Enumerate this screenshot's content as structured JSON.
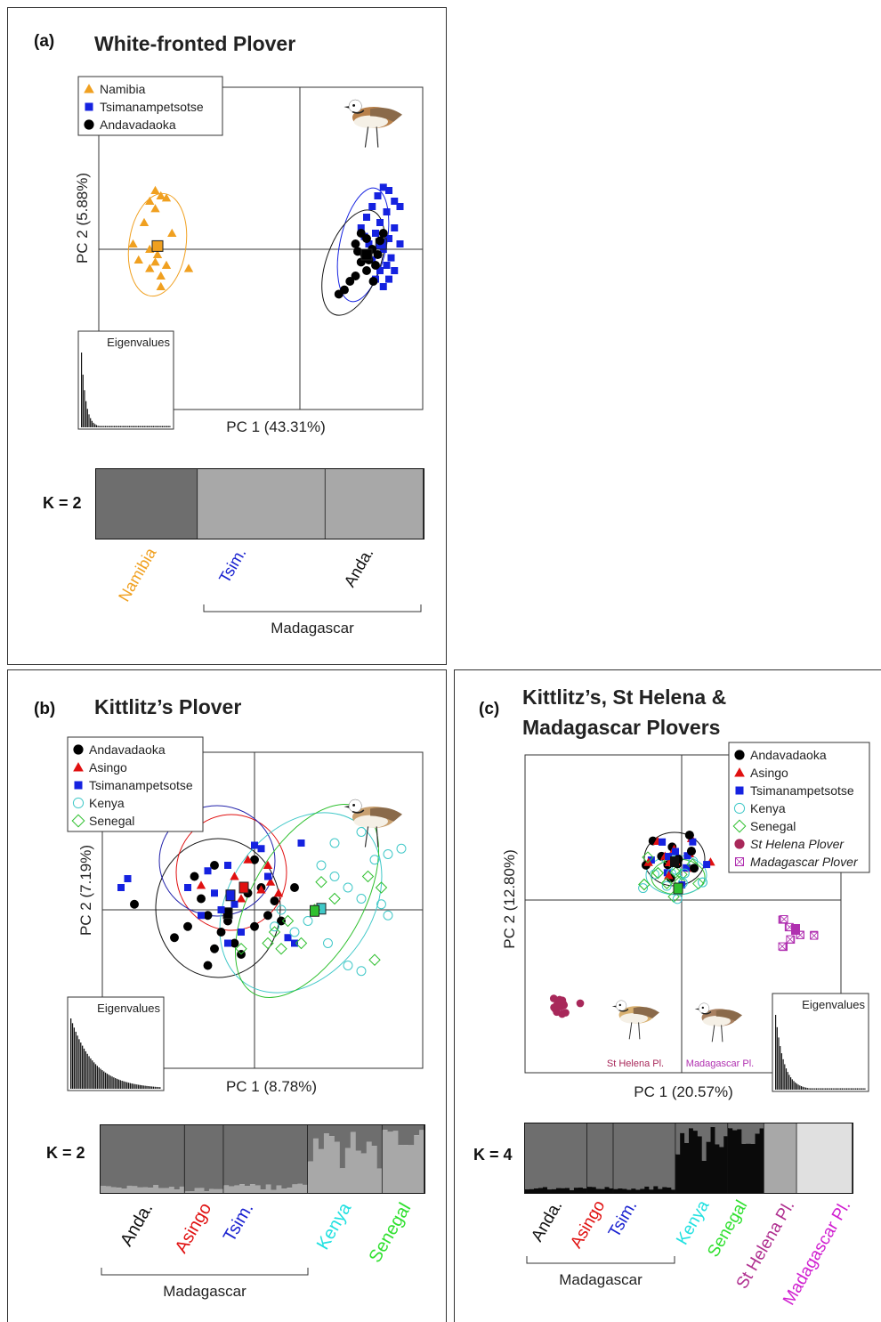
{
  "panels": {
    "a": {
      "label": "(a)",
      "title": "White-fronted Plover",
      "pc1": "PC 1 (43.31%)",
      "pc2": "PC 2 (5.88%)",
      "eigen": "Eigenvalues",
      "k": "K = 2",
      "pops": [
        {
          "name": "Namibia",
          "color": "#f0a020",
          "marker": "triangle"
        },
        {
          "name": "Tsimanampetsotse",
          "color": "#1522e0",
          "marker": "square"
        },
        {
          "name": "Andavadaoka",
          "color": "#000000",
          "marker": "circle"
        }
      ],
      "groups": [
        "Namibia",
        "Tsim.",
        "Anda."
      ],
      "group_colors": [
        "#f0a020",
        "#1a22d0",
        "#111111"
      ],
      "bracket": "Madagascar"
    },
    "b": {
      "label": "(b)",
      "title": "Kittlitz’s Plover",
      "pc1": "PC 1 (8.78%)",
      "pc2": "PC 2 (7.19%)",
      "eigen": "Eigenvalues",
      "k": "K = 2",
      "pops": [
        {
          "name": "Andavadaoka",
          "color": "#000000",
          "marker": "circle"
        },
        {
          "name": "Asingo",
          "color": "#e01010",
          "marker": "triangle"
        },
        {
          "name": "Tsimanampetsotse",
          "color": "#1522e0",
          "marker": "square"
        },
        {
          "name": "Kenya",
          "color": "#40c8c8",
          "marker": "open-circle"
        },
        {
          "name": "Senegal",
          "color": "#30c030",
          "marker": "open-diamond"
        }
      ],
      "groups": [
        "Anda.",
        "Asingo",
        "Tsim.",
        "Kenya",
        "Senegal"
      ],
      "group_colors": [
        "#111111",
        "#e01010",
        "#1a22d0",
        "#20e0e0",
        "#30e030"
      ],
      "bracket": "Madagascar"
    },
    "c": {
      "label": "(c)",
      "title_line1": "Kittlitz’s, St Helena &",
      "title_line2": "Madagascar Plovers",
      "pc1": "PC 1 (20.57%)",
      "pc2": "PC 2 (12.80%)",
      "eigen": "Eigenvalues",
      "k": "K = 4",
      "pops": [
        {
          "name": "Andavadaoka",
          "color": "#000000",
          "marker": "circle"
        },
        {
          "name": "Asingo",
          "color": "#e01010",
          "marker": "triangle"
        },
        {
          "name": "Tsimanampetsotse",
          "color": "#1522e0",
          "marker": "square"
        },
        {
          "name": "Kenya",
          "color": "#40c8c8",
          "marker": "open-circle"
        },
        {
          "name": "Senegal",
          "color": "#30c030",
          "marker": "open-diamond"
        },
        {
          "name": "St Helena Plover",
          "color": "#a8285a",
          "marker": "circle"
        },
        {
          "name": "Madagascar Plover",
          "color": "#b030b0",
          "marker": "crossed-square"
        }
      ],
      "groups": [
        "Anda.",
        "Asingo",
        "Tsim.",
        "Kenya",
        "Senegal",
        "St Helena Pl.",
        "Madagascar Pl."
      ],
      "group_colors": [
        "#111111",
        "#e01010",
        "#1a22d0",
        "#20e0e0",
        "#30e030",
        "#b03090",
        "#d020d0"
      ],
      "bracket": "Madagascar",
      "bird_label_1": "St Helena Pl.",
      "bird_label_2": "Madagascar Pl."
    }
  },
  "chart_data": [
    {
      "panel": "a",
      "type": "scatter",
      "title": "White-fronted Plover",
      "xlabel": "PC 1 (43.31%)",
      "ylabel": "PC 2 (5.88%)",
      "series": [
        {
          "name": "Namibia",
          "points": [
            [
              -1.3,
              0.55
            ],
            [
              -1.25,
              0.5
            ],
            [
              -1.2,
              0.48
            ],
            [
              -1.35,
              0.45
            ],
            [
              -1.3,
              0.38
            ],
            [
              -1.4,
              0.25
            ],
            [
              -1.15,
              0.15
            ],
            [
              -1.5,
              0.05
            ],
            [
              -1.35,
              0.0
            ],
            [
              -1.28,
              -0.05
            ],
            [
              -1.45,
              -0.1
            ],
            [
              -1.3,
              -0.12
            ],
            [
              -1.2,
              -0.15
            ],
            [
              -1.35,
              -0.18
            ],
            [
              -1.25,
              -0.25
            ],
            [
              -1.0,
              -0.18
            ],
            [
              -1.25,
              -0.35
            ]
          ],
          "centroid": [
            -1.28,
            0.03
          ]
        },
        {
          "name": "Tsimanampetsotse",
          "points": [
            [
              0.75,
              0.58
            ],
            [
              0.8,
              0.55
            ],
            [
              0.7,
              0.5
            ],
            [
              0.85,
              0.45
            ],
            [
              0.65,
              0.4
            ],
            [
              0.78,
              0.35
            ],
            [
              0.9,
              0.4
            ],
            [
              0.6,
              0.3
            ],
            [
              0.72,
              0.25
            ],
            [
              0.85,
              0.2
            ],
            [
              0.68,
              0.15
            ],
            [
              0.8,
              0.1
            ],
            [
              0.9,
              0.05
            ],
            [
              0.62,
              0.05
            ],
            [
              0.75,
              0.0
            ],
            [
              0.7,
              -0.05
            ],
            [
              0.82,
              -0.08
            ],
            [
              0.65,
              -0.1
            ],
            [
              0.78,
              -0.15
            ],
            [
              0.72,
              -0.2
            ],
            [
              0.85,
              -0.2
            ],
            [
              0.68,
              -0.28
            ],
            [
              0.75,
              -0.35
            ],
            [
              0.8,
              -0.28
            ],
            [
              0.55,
              0.2
            ],
            [
              0.58,
              0.12
            ]
          ],
          "centroid": [
            0.73,
            0.05
          ]
        },
        {
          "name": "Andavadaoka",
          "points": [
            [
              0.55,
              0.15
            ],
            [
              0.6,
              0.1
            ],
            [
              0.5,
              0.05
            ],
            [
              0.65,
              0.0
            ],
            [
              0.58,
              -0.05
            ],
            [
              0.62,
              -0.1
            ],
            [
              0.55,
              -0.12
            ],
            [
              0.68,
              -0.15
            ],
            [
              0.6,
              -0.2
            ],
            [
              0.5,
              -0.25
            ],
            [
              0.45,
              -0.3
            ],
            [
              0.4,
              -0.38
            ],
            [
              0.35,
              -0.42
            ],
            [
              0.7,
              -0.05
            ],
            [
              0.72,
              0.08
            ],
            [
              0.66,
              -0.3
            ],
            [
              0.52,
              -0.02
            ],
            [
              0.75,
              0.15
            ]
          ],
          "centroid": [
            0.6,
            -0.05
          ]
        }
      ]
    },
    {
      "panel": "b",
      "type": "scatter",
      "title": "Kittlitz’s Plover",
      "xlabel": "PC 1 (8.78%)",
      "ylabel": "PC 2 (7.19%)",
      "series": [
        {
          "name": "Andavadaoka",
          "points": [
            [
              -0.9,
              0.05
            ],
            [
              -0.3,
              0.4
            ],
            [
              -0.4,
              0.1
            ],
            [
              -0.35,
              -0.05
            ],
            [
              -0.2,
              -0.1
            ],
            [
              -0.5,
              -0.15
            ],
            [
              -0.25,
              -0.2
            ],
            [
              -0.6,
              -0.25
            ],
            [
              -0.15,
              -0.3
            ],
            [
              -0.3,
              -0.35
            ],
            [
              0.0,
              -0.15
            ],
            [
              0.1,
              -0.05
            ],
            [
              -0.05,
              0.15
            ],
            [
              0.05,
              0.2
            ],
            [
              0.15,
              0.08
            ],
            [
              0.2,
              -0.1
            ],
            [
              -0.45,
              0.3
            ],
            [
              0.0,
              0.45
            ],
            [
              -0.1,
              -0.4
            ],
            [
              -0.35,
              -0.5
            ],
            [
              0.3,
              0.2
            ]
          ],
          "centroid": [
            -0.2,
            -0.03
          ]
        },
        {
          "name": "Asingo",
          "points": [
            [
              -0.05,
              0.45
            ],
            [
              0.1,
              0.4
            ],
            [
              -0.4,
              0.22
            ],
            [
              -0.15,
              0.3
            ],
            [
              0.05,
              0.18
            ],
            [
              0.12,
              0.25
            ],
            [
              -0.1,
              0.1
            ],
            [
              0.18,
              0.15
            ]
          ],
          "centroid": [
            -0.08,
            0.2
          ]
        },
        {
          "name": "Tsimanampetsotse",
          "points": [
            [
              -1.0,
              0.2
            ],
            [
              -0.95,
              0.28
            ],
            [
              -0.35,
              0.35
            ],
            [
              -0.2,
              0.4
            ],
            [
              -0.5,
              0.2
            ],
            [
              -0.3,
              0.15
            ],
            [
              -0.15,
              0.05
            ],
            [
              -0.25,
              0.0
            ],
            [
              -0.4,
              -0.05
            ],
            [
              -0.1,
              -0.2
            ],
            [
              -0.2,
              -0.3
            ],
            [
              0.1,
              0.3
            ],
            [
              0.05,
              0.55
            ],
            [
              0.0,
              0.58
            ],
            [
              0.25,
              -0.25
            ],
            [
              0.3,
              -0.3
            ],
            [
              0.35,
              0.6
            ]
          ],
          "centroid": [
            -0.18,
            0.13
          ]
        },
        {
          "name": "Kenya",
          "points": [
            [
              0.8,
              0.7
            ],
            [
              0.9,
              0.45
            ],
            [
              1.0,
              0.5
            ],
            [
              1.1,
              0.55
            ],
            [
              0.5,
              0.4
            ],
            [
              0.6,
              0.3
            ],
            [
              0.7,
              0.2
            ],
            [
              0.8,
              0.1
            ],
            [
              0.95,
              0.05
            ],
            [
              1.0,
              -0.05
            ],
            [
              0.4,
              -0.1
            ],
            [
              0.3,
              -0.2
            ],
            [
              0.2,
              0.0
            ],
            [
              0.55,
              -0.3
            ],
            [
              0.7,
              -0.5
            ],
            [
              0.8,
              -0.55
            ],
            [
              0.15,
              -0.15
            ],
            [
              0.6,
              0.6
            ]
          ],
          "centroid": [
            0.5,
            0.01
          ]
        },
        {
          "name": "Senegal",
          "points": [
            [
              0.85,
              0.3
            ],
            [
              0.95,
              0.2
            ],
            [
              0.6,
              0.1
            ],
            [
              0.45,
              0.0
            ],
            [
              0.25,
              -0.1
            ],
            [
              0.15,
              -0.2
            ],
            [
              0.1,
              -0.3
            ],
            [
              0.2,
              -0.35
            ],
            [
              0.35,
              -0.3
            ],
            [
              0.9,
              -0.45
            ],
            [
              -0.1,
              -0.35
            ],
            [
              0.5,
              0.25
            ]
          ],
          "centroid": [
            0.45,
            -0.01
          ]
        }
      ]
    },
    {
      "panel": "c",
      "type": "scatter",
      "title": "Kittlitz’s, St Helena & Madagascar Plovers",
      "xlabel": "PC 1 (20.57%)",
      "ylabel": "PC 2 (12.80%)",
      "series": [
        {
          "name": "Andavadaoka",
          "centroid": [
            -0.02,
            0.22
          ]
        },
        {
          "name": "Asingo",
          "centroid": [
            -0.05,
            0.25
          ]
        },
        {
          "name": "Tsimanampetsotse",
          "centroid": [
            -0.03,
            0.2
          ]
        },
        {
          "name": "Kenya",
          "centroid": [
            -0.01,
            0.1
          ]
        },
        {
          "name": "Senegal",
          "centroid": [
            0.0,
            0.1
          ]
        },
        {
          "name": "St Helena Plover",
          "centroid": [
            -0.95,
            -0.58
          ]
        },
        {
          "name": "Madagascar Plover",
          "centroid": [
            0.8,
            -0.27
          ]
        }
      ]
    }
  ]
}
